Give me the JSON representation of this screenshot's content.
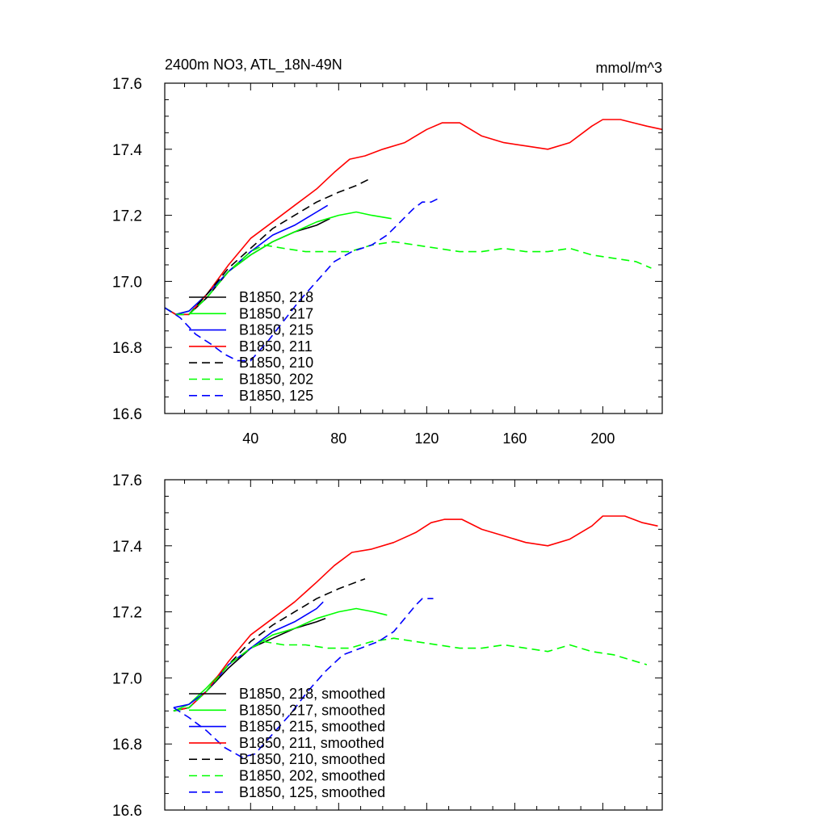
{
  "title_left": "2400m NO3, ATL_18N-49N",
  "title_right": "mmol/m^3",
  "chart_data": [
    {
      "type": "line",
      "xlim": [
        1,
        227
      ],
      "ylim": [
        16.6,
        17.6
      ],
      "x_ticks": [
        40,
        80,
        120,
        160,
        200
      ],
      "y_ticks": [
        "16.6",
        "16.8",
        "17.0",
        "17.2",
        "17.4",
        "17.6"
      ],
      "legend_position": "lower-left",
      "series": [
        {
          "name": "B1850, 218",
          "color": "#000000",
          "dash": false,
          "points": [
            [
              1,
              16.92
            ],
            [
              6,
              16.9
            ],
            [
              12,
              16.9
            ],
            [
              20,
              16.95
            ],
            [
              30,
              17.03
            ],
            [
              40,
              17.08
            ],
            [
              50,
              17.12
            ],
            [
              60,
              17.15
            ],
            [
              70,
              17.17
            ],
            [
              76,
              17.19
            ]
          ]
        },
        {
          "name": "B1850, 217",
          "color": "#00ff00",
          "dash": false,
          "points": [
            [
              1,
              16.92
            ],
            [
              6,
              16.9
            ],
            [
              12,
              16.91
            ],
            [
              20,
              16.96
            ],
            [
              30,
              17.03
            ],
            [
              40,
              17.08
            ],
            [
              50,
              17.12
            ],
            [
              60,
              17.15
            ],
            [
              70,
              17.18
            ],
            [
              80,
              17.2
            ],
            [
              88,
              17.21
            ],
            [
              95,
              17.2
            ],
            [
              104,
              17.19
            ]
          ]
        },
        {
          "name": "B1850, 215",
          "color": "#0000ff",
          "dash": false,
          "points": [
            [
              1,
              16.92
            ],
            [
              6,
              16.9
            ],
            [
              12,
              16.91
            ],
            [
              20,
              16.96
            ],
            [
              30,
              17.03
            ],
            [
              40,
              17.09
            ],
            [
              50,
              17.14
            ],
            [
              60,
              17.17
            ],
            [
              70,
              17.21
            ],
            [
              75,
              17.23
            ]
          ]
        },
        {
          "name": "B1850, 211",
          "color": "#ff0000",
          "dash": false,
          "points": [
            [
              1,
              16.92
            ],
            [
              6,
              16.9
            ],
            [
              12,
              16.9
            ],
            [
              20,
              16.96
            ],
            [
              30,
              17.05
            ],
            [
              40,
              17.13
            ],
            [
              50,
              17.18
            ],
            [
              60,
              17.23
            ],
            [
              70,
              17.28
            ],
            [
              78,
              17.33
            ],
            [
              85,
              17.37
            ],
            [
              92,
              17.38
            ],
            [
              100,
              17.4
            ],
            [
              110,
              17.42
            ],
            [
              120,
              17.46
            ],
            [
              127,
              17.48
            ],
            [
              135,
              17.48
            ],
            [
              145,
              17.44
            ],
            [
              155,
              17.42
            ],
            [
              165,
              17.41
            ],
            [
              175,
              17.4
            ],
            [
              185,
              17.42
            ],
            [
              195,
              17.47
            ],
            [
              200,
              17.49
            ],
            [
              208,
              17.49
            ],
            [
              214,
              17.48
            ],
            [
              220,
              17.47
            ],
            [
              227,
              17.46
            ]
          ]
        },
        {
          "name": "B1850, 210",
          "color": "#000000",
          "dash": true,
          "points": [
            [
              1,
              16.92
            ],
            [
              6,
              16.9
            ],
            [
              12,
              16.9
            ],
            [
              20,
              16.96
            ],
            [
              30,
              17.04
            ],
            [
              40,
              17.1
            ],
            [
              50,
              17.16
            ],
            [
              60,
              17.2
            ],
            [
              70,
              17.24
            ],
            [
              80,
              17.27
            ],
            [
              88,
              17.29
            ],
            [
              94,
              17.31
            ]
          ]
        },
        {
          "name": "B1850, 202",
          "color": "#00ff00",
          "dash": true,
          "points": [
            [
              1,
              16.92
            ],
            [
              6,
              16.9
            ],
            [
              12,
              16.9
            ],
            [
              20,
              16.95
            ],
            [
              30,
              17.03
            ],
            [
              40,
              17.09
            ],
            [
              46,
              17.11
            ],
            [
              55,
              17.1
            ],
            [
              65,
              17.09
            ],
            [
              75,
              17.09
            ],
            [
              85,
              17.09
            ],
            [
              95,
              17.11
            ],
            [
              105,
              17.12
            ],
            [
              115,
              17.11
            ],
            [
              125,
              17.1
            ],
            [
              135,
              17.09
            ],
            [
              145,
              17.09
            ],
            [
              155,
              17.1
            ],
            [
              165,
              17.09
            ],
            [
              175,
              17.09
            ],
            [
              185,
              17.1
            ],
            [
              195,
              17.08
            ],
            [
              205,
              17.07
            ],
            [
              215,
              17.06
            ],
            [
              222,
              17.04
            ]
          ]
        },
        {
          "name": "B1850, 125",
          "color": "#0000ff",
          "dash": true,
          "points": [
            [
              1,
              16.92
            ],
            [
              8,
              16.89
            ],
            [
              15,
              16.84
            ],
            [
              22,
              16.81
            ],
            [
              28,
              16.78
            ],
            [
              34,
              16.76
            ],
            [
              40,
              16.76
            ],
            [
              48,
              16.82
            ],
            [
              55,
              16.88
            ],
            [
              62,
              16.94
            ],
            [
              70,
              17.0
            ],
            [
              78,
              17.06
            ],
            [
              86,
              17.09
            ],
            [
              95,
              17.11
            ],
            [
              102,
              17.14
            ],
            [
              108,
              17.18
            ],
            [
              114,
              17.22
            ],
            [
              118,
              17.24
            ],
            [
              122,
              17.24
            ],
            [
              125,
              17.25
            ]
          ]
        }
      ]
    },
    {
      "type": "line",
      "xlim": [
        1,
        227
      ],
      "ylim": [
        16.6,
        17.6
      ],
      "x_ticks": [
        40,
        80,
        120,
        160,
        200
      ],
      "y_ticks": [
        "16.6",
        "16.8",
        "17.0",
        "17.2",
        "17.4",
        "17.6"
      ],
      "legend_position": "lower-left",
      "series": [
        {
          "name": "B1850, 218, smoothed",
          "color": "#000000",
          "dash": false,
          "points": [
            [
              5,
              16.9
            ],
            [
              12,
              16.91
            ],
            [
              20,
              16.96
            ],
            [
              30,
              17.03
            ],
            [
              40,
              17.09
            ],
            [
              50,
              17.12
            ],
            [
              60,
              17.15
            ],
            [
              70,
              17.17
            ],
            [
              74,
              17.18
            ]
          ]
        },
        {
          "name": "B1850, 217, smoothed",
          "color": "#00ff00",
          "dash": false,
          "points": [
            [
              5,
              16.9
            ],
            [
              12,
              16.92
            ],
            [
              20,
              16.97
            ],
            [
              30,
              17.04
            ],
            [
              40,
              17.09
            ],
            [
              50,
              17.13
            ],
            [
              60,
              17.15
            ],
            [
              70,
              17.18
            ],
            [
              80,
              17.2
            ],
            [
              88,
              17.21
            ],
            [
              96,
              17.2
            ],
            [
              102,
              17.19
            ]
          ]
        },
        {
          "name": "B1850, 215, smoothed",
          "color": "#0000ff",
          "dash": false,
          "points": [
            [
              5,
              16.91
            ],
            [
              12,
              16.92
            ],
            [
              20,
              16.96
            ],
            [
              30,
              17.04
            ],
            [
              40,
              17.09
            ],
            [
              50,
              17.14
            ],
            [
              60,
              17.17
            ],
            [
              70,
              17.21
            ],
            [
              73,
              17.23
            ]
          ]
        },
        {
          "name": "B1850, 211, smoothed",
          "color": "#ff0000",
          "dash": false,
          "points": [
            [
              5,
              16.9
            ],
            [
              12,
              16.91
            ],
            [
              20,
              16.96
            ],
            [
              30,
              17.05
            ],
            [
              40,
              17.13
            ],
            [
              50,
              17.18
            ],
            [
              60,
              17.23
            ],
            [
              70,
              17.29
            ],
            [
              78,
              17.34
            ],
            [
              86,
              17.38
            ],
            [
              95,
              17.39
            ],
            [
              105,
              17.41
            ],
            [
              115,
              17.44
            ],
            [
              122,
              17.47
            ],
            [
              128,
              17.48
            ],
            [
              136,
              17.48
            ],
            [
              145,
              17.45
            ],
            [
              155,
              17.43
            ],
            [
              165,
              17.41
            ],
            [
              175,
              17.4
            ],
            [
              185,
              17.42
            ],
            [
              195,
              17.46
            ],
            [
              200,
              17.49
            ],
            [
              210,
              17.49
            ],
            [
              218,
              17.47
            ],
            [
              225,
              17.46
            ]
          ]
        },
        {
          "name": "B1850, 210, smoothed",
          "color": "#000000",
          "dash": true,
          "points": [
            [
              5,
              16.9
            ],
            [
              12,
              16.91
            ],
            [
              20,
              16.96
            ],
            [
              30,
              17.04
            ],
            [
              40,
              17.11
            ],
            [
              50,
              17.16
            ],
            [
              60,
              17.2
            ],
            [
              70,
              17.24
            ],
            [
              80,
              17.27
            ],
            [
              88,
              17.29
            ],
            [
              92,
              17.3
            ]
          ]
        },
        {
          "name": "B1850, 202, smoothed",
          "color": "#00ff00",
          "dash": true,
          "points": [
            [
              5,
              16.9
            ],
            [
              12,
              16.91
            ],
            [
              20,
              16.96
            ],
            [
              30,
              17.04
            ],
            [
              40,
              17.09
            ],
            [
              46,
              17.11
            ],
            [
              55,
              17.1
            ],
            [
              65,
              17.1
            ],
            [
              75,
              17.09
            ],
            [
              85,
              17.09
            ],
            [
              95,
              17.11
            ],
            [
              105,
              17.12
            ],
            [
              115,
              17.11
            ],
            [
              125,
              17.1
            ],
            [
              135,
              17.09
            ],
            [
              145,
              17.09
            ],
            [
              155,
              17.1
            ],
            [
              165,
              17.09
            ],
            [
              175,
              17.08
            ],
            [
              185,
              17.1
            ],
            [
              195,
              17.08
            ],
            [
              205,
              17.07
            ],
            [
              215,
              17.05
            ],
            [
              220,
              17.04
            ]
          ]
        },
        {
          "name": "B1850, 125, smoothed",
          "color": "#0000ff",
          "dash": true,
          "points": [
            [
              5,
              16.91
            ],
            [
              12,
              16.88
            ],
            [
              20,
              16.84
            ],
            [
              28,
              16.79
            ],
            [
              36,
              16.76
            ],
            [
              42,
              16.77
            ],
            [
              50,
              16.83
            ],
            [
              58,
              16.89
            ],
            [
              66,
              16.96
            ],
            [
              74,
              17.02
            ],
            [
              82,
              17.07
            ],
            [
              90,
              17.09
            ],
            [
              98,
              17.11
            ],
            [
              105,
              17.14
            ],
            [
              110,
              17.18
            ],
            [
              115,
              17.22
            ],
            [
              118,
              17.24
            ],
            [
              123,
              17.24
            ]
          ]
        }
      ]
    }
  ]
}
